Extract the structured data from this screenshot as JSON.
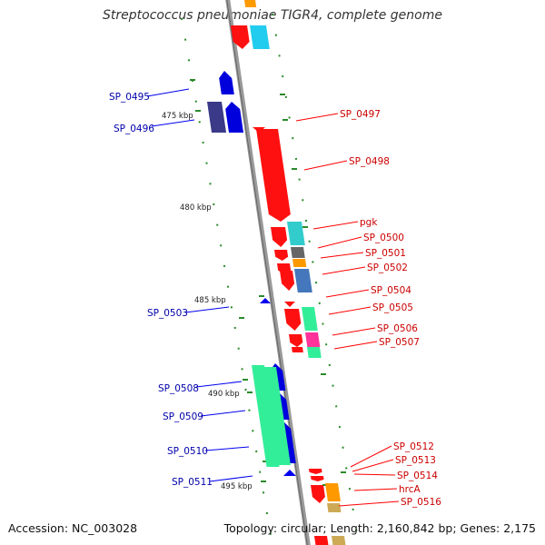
{
  "title": "Streptococcus pneumoniae TIGR4, complete genome",
  "footer": {
    "accession": "Accession: NC_003028",
    "topology": "Topology: circular; Length: 2,160,842 bp; Genes: 2,175"
  },
  "scale_labels": [
    "475 kbp",
    "480 kbp",
    "485 kbp",
    "490 kbp",
    "495 kbp"
  ],
  "colors": {
    "forward_strand": "#ff0000",
    "reverse_strand": "#0000ee",
    "backbone": "#888888",
    "label_forward": "#cc0000",
    "label_reverse": "#0000aa"
  },
  "genes_reverse": [
    "SP_0495",
    "SP_0496",
    "SP_0503",
    "SP_0508",
    "SP_0509",
    "SP_0510",
    "SP_0511"
  ],
  "genes_forward": [
    "SP_0497",
    "SP_0498",
    "pgk",
    "SP_0500",
    "SP_0501",
    "SP_0502",
    "SP_0504",
    "SP_0505",
    "SP_0506",
    "SP_0507",
    "SP_0512",
    "SP_0513",
    "SP_0514",
    "hrcA",
    "SP_0516"
  ]
}
